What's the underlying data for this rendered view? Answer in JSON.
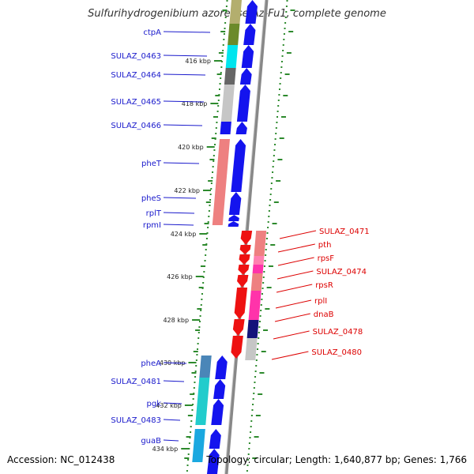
{
  "title": "Sulfurihydrogenibium azorense Az-Fu1, complete genome",
  "accession": "Accession: NC_012438",
  "topology": "Topology: circular; Length: 1,640,877 bp; Genes: 1,766",
  "colors": {
    "left_label": "#1a1acc",
    "right_label": "#dd0000",
    "backbone": "#888888",
    "ruler": "#2d8a2d",
    "cds_plus": "#1414ee",
    "cds_minus": "#ee1111"
  },
  "ruler": {
    "ticks": [
      {
        "label": "416 kbp"
      },
      {
        "label": "418 kbp"
      },
      {
        "label": "420 kbp"
      },
      {
        "label": "422 kbp"
      },
      {
        "label": "424 kbp"
      },
      {
        "label": "426 kbp"
      },
      {
        "label": "428 kbp"
      },
      {
        "label": "430 kbp"
      },
      {
        "label": "432 kbp"
      },
      {
        "label": "434 kbp"
      }
    ]
  },
  "genes_left": [
    {
      "name": "ctpA"
    },
    {
      "name": "SULAZ_0463"
    },
    {
      "name": "SULAZ_0464"
    },
    {
      "name": "SULAZ_0465"
    },
    {
      "name": "SULAZ_0466"
    },
    {
      "name": "pheT"
    },
    {
      "name": "pheS"
    },
    {
      "name": "rplT"
    },
    {
      "name": "rpmI"
    },
    {
      "name": "pheA"
    },
    {
      "name": "SULAZ_0481"
    },
    {
      "name": "pgk"
    },
    {
      "name": "SULAZ_0483"
    },
    {
      "name": "guaB"
    }
  ],
  "genes_right": [
    {
      "name": "SULAZ_0471"
    },
    {
      "name": "pth"
    },
    {
      "name": "rpsF"
    },
    {
      "name": "SULAZ_0474"
    },
    {
      "name": "rpsR"
    },
    {
      "name": "rplI"
    },
    {
      "name": "dnaB"
    },
    {
      "name": "SULAZ_0478"
    },
    {
      "name": "SULAZ_0480"
    }
  ]
}
